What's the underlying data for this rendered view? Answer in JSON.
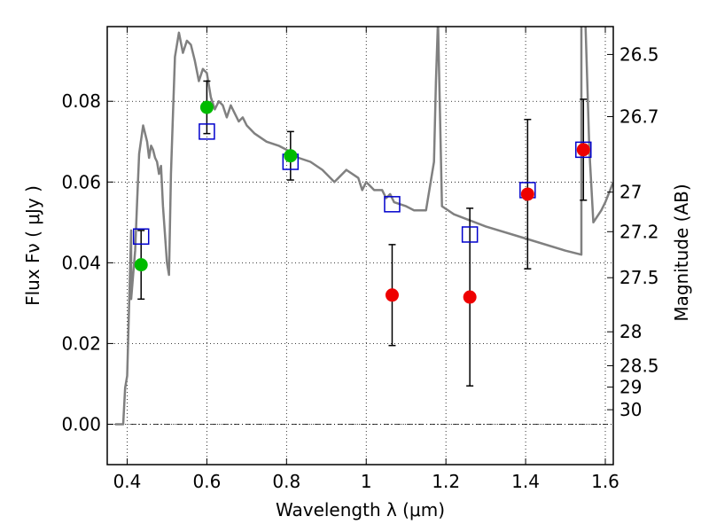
{
  "chart_data": {
    "type": "scatter",
    "xlabel": "Wavelength  λ (μm)",
    "ylabel": "Flux  Fν  ( μJy )",
    "y2label": "Magnitude (AB)",
    "xlim": [
      0.35,
      1.62
    ],
    "ylim": [
      -0.01,
      0.0985
    ],
    "x_ticks": [
      0.4,
      0.6,
      0.8,
      1.0,
      1.2,
      1.4,
      1.6
    ],
    "x_tick_labels": [
      "0.4",
      "0.6",
      "0.8",
      "1",
      "1.2",
      "1.4",
      "1.6"
    ],
    "y_ticks": [
      0.0,
      0.02,
      0.04,
      0.06,
      0.08
    ],
    "y_tick_labels": [
      "0.00",
      "0.02",
      "0.04",
      "0.06",
      "0.08"
    ],
    "mag_ticks": [
      {
        "flux": 0.0916,
        "label": "26.5"
      },
      {
        "flux": 0.0762,
        "label": "26.7"
      },
      {
        "flux": 0.0575,
        "label": "27"
      },
      {
        "flux": 0.0477,
        "label": "27.2"
      },
      {
        "flux": 0.0363,
        "label": "27.5"
      },
      {
        "flux": 0.0229,
        "label": "28"
      },
      {
        "flux": 0.0145,
        "label": "28.5"
      },
      {
        "flux": 0.0092,
        "label": "29"
      },
      {
        "flux": 0.0036,
        "label": "30"
      }
    ],
    "grid": true,
    "zero_line": 0.0,
    "colors": {
      "model": "#808080",
      "model_fluxes": "#0000cc",
      "green_points": "#00bb00",
      "red_points": "#ee0000",
      "errorbar": "#000000"
    },
    "series": [
      {
        "kind": "line",
        "x": [
          0.37,
          0.39,
          0.395,
          0.4,
          0.41,
          0.41,
          0.42,
          0.425,
          0.43,
          0.44,
          0.45,
          0.455,
          0.46,
          0.465,
          0.47,
          0.475,
          0.48,
          0.485,
          0.49,
          0.5,
          0.505,
          0.51,
          0.515,
          0.52,
          0.53,
          0.54,
          0.55,
          0.56,
          0.57,
          0.58,
          0.59,
          0.6,
          0.61,
          0.62,
          0.63,
          0.64,
          0.65,
          0.66,
          0.67,
          0.68,
          0.69,
          0.7,
          0.72,
          0.75,
          0.78,
          0.8,
          0.83,
          0.86,
          0.89,
          0.92,
          0.95,
          0.98,
          0.99,
          1.0,
          1.02,
          1.04,
          1.05,
          1.06,
          1.07,
          1.1,
          1.12,
          1.15,
          1.17,
          1.175,
          1.18,
          1.19,
          1.22,
          1.3,
          1.4,
          1.5,
          1.54,
          1.54,
          1.55,
          1.56,
          1.57,
          1.59,
          1.6,
          1.62
        ],
        "y": [
          0.0,
          0.0,
          0.009,
          0.012,
          0.048,
          0.031,
          0.043,
          0.055,
          0.067,
          0.074,
          0.07,
          0.066,
          0.069,
          0.068,
          0.066,
          0.065,
          0.062,
          0.064,
          0.054,
          0.04,
          0.037,
          0.062,
          0.077,
          0.091,
          0.097,
          0.092,
          0.095,
          0.094,
          0.09,
          0.085,
          0.088,
          0.087,
          0.081,
          0.078,
          0.08,
          0.079,
          0.076,
          0.079,
          0.077,
          0.075,
          0.076,
          0.074,
          0.072,
          0.07,
          0.069,
          0.068,
          0.066,
          0.065,
          0.063,
          0.06,
          0.063,
          0.061,
          0.058,
          0.06,
          0.058,
          0.058,
          0.056,
          0.057,
          0.055,
          0.054,
          0.053,
          0.053,
          0.065,
          0.085,
          0.1,
          0.054,
          0.052,
          0.049,
          0.046,
          0.043,
          0.042,
          0.1,
          0.1,
          0.068,
          0.05,
          0.053,
          0.055,
          0.06
        ]
      },
      {
        "kind": "open-squares",
        "x": [
          0.435,
          0.6,
          0.81,
          1.065,
          1.26,
          1.405,
          1.545
        ],
        "y": [
          0.0465,
          0.0725,
          0.065,
          0.0545,
          0.047,
          0.058,
          0.068
        ]
      },
      {
        "kind": "filled-circles",
        "x": [
          0.435,
          0.6,
          0.81
        ],
        "y": [
          0.0395,
          0.0785,
          0.0665
        ],
        "yerr": [
          0.0085,
          0.0065,
          0.006
        ]
      },
      {
        "kind": "filled-circles",
        "x": [
          1.065,
          1.26,
          1.405,
          1.545
        ],
        "y": [
          0.032,
          0.0315,
          0.057,
          0.068
        ],
        "yerr": [
          0.0125,
          0.022,
          0.0185,
          0.0125
        ]
      }
    ]
  }
}
